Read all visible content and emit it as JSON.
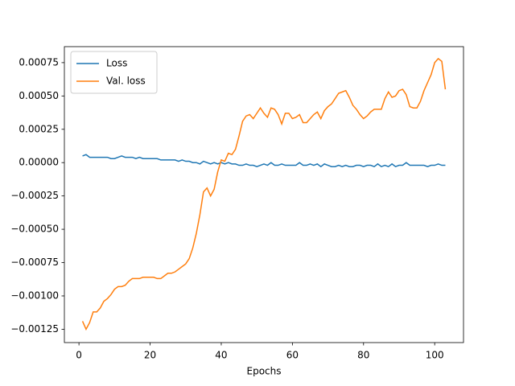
{
  "chart_data": {
    "type": "line",
    "x_label": "Epochs",
    "x": [
      1,
      2,
      3,
      4,
      5,
      6,
      7,
      8,
      9,
      10,
      11,
      12,
      13,
      14,
      15,
      16,
      17,
      18,
      19,
      20,
      21,
      22,
      23,
      24,
      25,
      26,
      27,
      28,
      29,
      30,
      31,
      32,
      33,
      34,
      35,
      36,
      37,
      38,
      39,
      40,
      41,
      42,
      43,
      44,
      45,
      46,
      47,
      48,
      49,
      50,
      51,
      52,
      53,
      54,
      55,
      56,
      57,
      58,
      59,
      60,
      61,
      62,
      63,
      64,
      65,
      66,
      67,
      68,
      69,
      70,
      71,
      72,
      73,
      74,
      75,
      76,
      77,
      78,
      79,
      80,
      81,
      82,
      83,
      84,
      85,
      86,
      87,
      88,
      89,
      90,
      91,
      92,
      93,
      94,
      95,
      96,
      97,
      98,
      99,
      100,
      101,
      102,
      103
    ],
    "series": [
      {
        "name": "Loss",
        "color": "#1f77b4",
        "values": [
          5e-05,
          6e-05,
          4e-05,
          4e-05,
          4e-05,
          4e-05,
          4e-05,
          4e-05,
          3e-05,
          3e-05,
          4e-05,
          5e-05,
          4e-05,
          4e-05,
          4e-05,
          3e-05,
          4e-05,
          3e-05,
          3e-05,
          3e-05,
          3e-05,
          3e-05,
          2e-05,
          2e-05,
          2e-05,
          2e-05,
          2e-05,
          1e-05,
          2e-05,
          1e-05,
          1e-05,
          0,
          0,
          -1e-05,
          1e-05,
          0,
          -1e-05,
          0,
          -1e-05,
          0,
          -1e-05,
          0,
          -1e-05,
          -1e-05,
          -2e-05,
          -2e-05,
          -1e-05,
          -2e-05,
          -2e-05,
          -3e-05,
          -2e-05,
          -1e-05,
          -2e-05,
          0,
          -2e-05,
          -2e-05,
          -1e-05,
          -2e-05,
          -2e-05,
          -2e-05,
          -2e-05,
          0,
          -2e-05,
          -2e-05,
          -1e-05,
          -2e-05,
          -1e-05,
          -3e-05,
          -1e-05,
          -2e-05,
          -3e-05,
          -3e-05,
          -2e-05,
          -3e-05,
          -2e-05,
          -3e-05,
          -3e-05,
          -2e-05,
          -2e-05,
          -3e-05,
          -2e-05,
          -2e-05,
          -3e-05,
          -1e-05,
          -3e-05,
          -2e-05,
          -3e-05,
          -1e-05,
          -3e-05,
          -2e-05,
          -2e-05,
          0,
          -2e-05,
          -2e-05,
          -2e-05,
          -2e-05,
          -2e-05,
          -3e-05,
          -2e-05,
          -2e-05,
          -1e-05,
          -2e-05,
          -2e-05
        ]
      },
      {
        "name": "Val. loss",
        "color": "#ff7f0e",
        "values": [
          -0.00119,
          -0.00125,
          -0.0012,
          -0.00112,
          -0.00112,
          -0.00109,
          -0.00104,
          -0.00102,
          -0.00099,
          -0.00095,
          -0.00093,
          -0.00093,
          -0.00092,
          -0.00089,
          -0.00087,
          -0.00087,
          -0.00087,
          -0.00086,
          -0.00086,
          -0.00086,
          -0.00086,
          -0.00087,
          -0.00087,
          -0.00085,
          -0.00083,
          -0.00083,
          -0.00082,
          -0.0008,
          -0.00078,
          -0.00076,
          -0.00072,
          -0.00064,
          -0.00053,
          -0.00039,
          -0.00022,
          -0.00019,
          -0.00025,
          -0.0002,
          -7e-05,
          2e-05,
          1e-05,
          7e-05,
          6e-05,
          0.0001,
          0.0002,
          0.00031,
          0.00035,
          0.00036,
          0.00033,
          0.00037,
          0.00041,
          0.00037,
          0.00034,
          0.00041,
          0.0004,
          0.00036,
          0.00029,
          0.00037,
          0.00037,
          0.00033,
          0.00034,
          0.00036,
          0.0003,
          0.0003,
          0.00033,
          0.00036,
          0.00038,
          0.00033,
          0.00039,
          0.00042,
          0.00044,
          0.00048,
          0.00052,
          0.00053,
          0.00054,
          0.00049,
          0.00043,
          0.0004,
          0.00036,
          0.00033,
          0.00035,
          0.00038,
          0.0004,
          0.0004,
          0.0004,
          0.00048,
          0.00053,
          0.00049,
          0.0005,
          0.00054,
          0.00055,
          0.00051,
          0.00042,
          0.00041,
          0.00041,
          0.00046,
          0.00054,
          0.0006,
          0.00066,
          0.00075,
          0.00078,
          0.00076,
          0.00055
        ]
      }
    ],
    "xlim": [
      -4.1,
      108.1
    ],
    "ylim": [
      -0.00135,
      0.00087
    ],
    "xticks": [
      0,
      20,
      40,
      60,
      80,
      100
    ],
    "yticks": [
      {
        "value": 0.00075,
        "label": "0.00075"
      },
      {
        "value": 0.0005,
        "label": "0.00050"
      },
      {
        "value": 0.00025,
        "label": "0.00025"
      },
      {
        "value": 0,
        "label": "0.00000"
      },
      {
        "value": -0.00025,
        "label": "−0.00025"
      },
      {
        "value": -0.0005,
        "label": "−0.00050"
      },
      {
        "value": -0.00075,
        "label": "−0.00075"
      },
      {
        "value": -0.001,
        "label": "−0.00100"
      },
      {
        "value": -0.00125,
        "label": "−0.00125"
      }
    ],
    "grid": false,
    "legend": "upper-left"
  }
}
